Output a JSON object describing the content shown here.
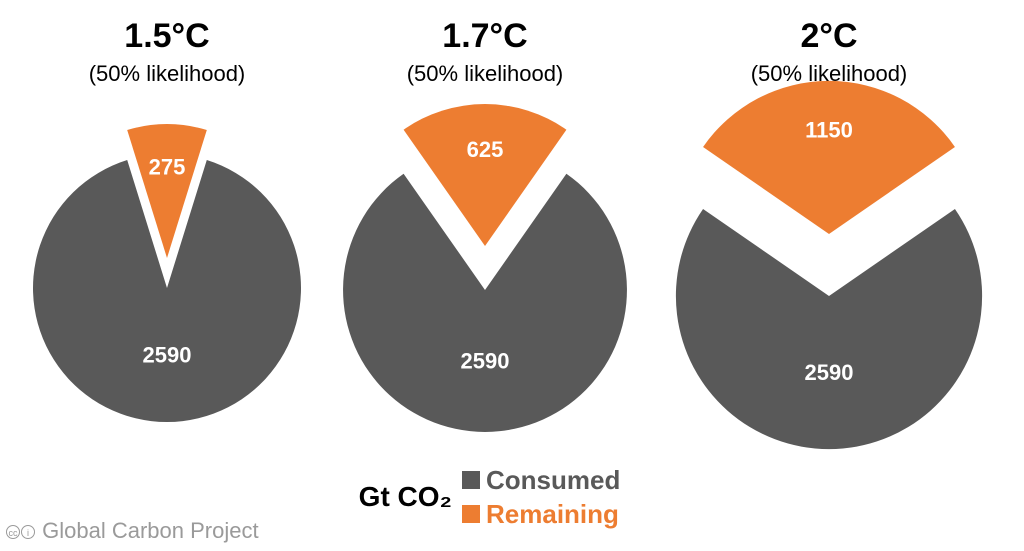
{
  "chart_data": {
    "type": "pie",
    "unit": "Gt CO₂",
    "legend": [
      {
        "label": "Consumed",
        "color": "#595959"
      },
      {
        "label": "Remaining",
        "color": "#ED7D31"
      }
    ],
    "charts": [
      {
        "title": "1.5°C",
        "subtitle": "(50% likelihood)",
        "consumed": 2590,
        "remaining": 275
      },
      {
        "title": "1.7°C",
        "subtitle": "(50% likelihood)",
        "consumed": 2590,
        "remaining": 625
      },
      {
        "title": "2°C",
        "subtitle": "(50% likelihood)",
        "consumed": 2590,
        "remaining": 1150
      }
    ]
  },
  "credit": {
    "cc_icon": "cc-icon",
    "by_icon": "by-icon",
    "text": "Global Carbon Project"
  }
}
